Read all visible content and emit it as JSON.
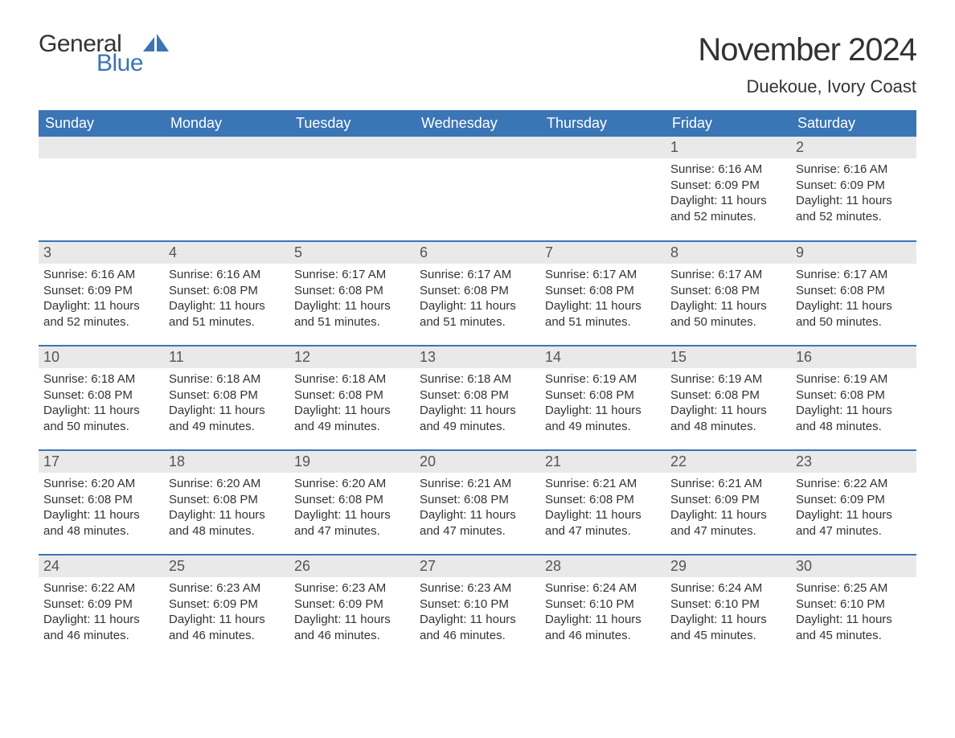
{
  "logo": {
    "text1": "General",
    "text2": "Blue",
    "icon_color": "#3a75b5"
  },
  "title": "November 2024",
  "location": "Duekoue, Ivory Coast",
  "colors": {
    "header_bg": "#3a75b5",
    "header_text": "#ffffff",
    "daybar_bg": "#e9e9e9",
    "daybar_text": "#555555",
    "body_text": "#333333",
    "row_divider": "#3a75b5",
    "background": "#ffffff"
  },
  "typography": {
    "title_fontsize": 40,
    "location_fontsize": 22,
    "header_fontsize": 18,
    "daynum_fontsize": 18,
    "cell_fontsize": 15
  },
  "layout": {
    "columns": 7,
    "rows": 5,
    "leading_blanks": 5
  },
  "weekday_headers": [
    "Sunday",
    "Monday",
    "Tuesday",
    "Wednesday",
    "Thursday",
    "Friday",
    "Saturday"
  ],
  "labels": {
    "sunrise": "Sunrise:",
    "sunset": "Sunset:",
    "daylight": "Daylight:"
  },
  "days": [
    {
      "n": 1,
      "sunrise": "6:16 AM",
      "sunset": "6:09 PM",
      "daylight": "11 hours and 52 minutes."
    },
    {
      "n": 2,
      "sunrise": "6:16 AM",
      "sunset": "6:09 PM",
      "daylight": "11 hours and 52 minutes."
    },
    {
      "n": 3,
      "sunrise": "6:16 AM",
      "sunset": "6:09 PM",
      "daylight": "11 hours and 52 minutes."
    },
    {
      "n": 4,
      "sunrise": "6:16 AM",
      "sunset": "6:08 PM",
      "daylight": "11 hours and 51 minutes."
    },
    {
      "n": 5,
      "sunrise": "6:17 AM",
      "sunset": "6:08 PM",
      "daylight": "11 hours and 51 minutes."
    },
    {
      "n": 6,
      "sunrise": "6:17 AM",
      "sunset": "6:08 PM",
      "daylight": "11 hours and 51 minutes."
    },
    {
      "n": 7,
      "sunrise": "6:17 AM",
      "sunset": "6:08 PM",
      "daylight": "11 hours and 51 minutes."
    },
    {
      "n": 8,
      "sunrise": "6:17 AM",
      "sunset": "6:08 PM",
      "daylight": "11 hours and 50 minutes."
    },
    {
      "n": 9,
      "sunrise": "6:17 AM",
      "sunset": "6:08 PM",
      "daylight": "11 hours and 50 minutes."
    },
    {
      "n": 10,
      "sunrise": "6:18 AM",
      "sunset": "6:08 PM",
      "daylight": "11 hours and 50 minutes."
    },
    {
      "n": 11,
      "sunrise": "6:18 AM",
      "sunset": "6:08 PM",
      "daylight": "11 hours and 49 minutes."
    },
    {
      "n": 12,
      "sunrise": "6:18 AM",
      "sunset": "6:08 PM",
      "daylight": "11 hours and 49 minutes."
    },
    {
      "n": 13,
      "sunrise": "6:18 AM",
      "sunset": "6:08 PM",
      "daylight": "11 hours and 49 minutes."
    },
    {
      "n": 14,
      "sunrise": "6:19 AM",
      "sunset": "6:08 PM",
      "daylight": "11 hours and 49 minutes."
    },
    {
      "n": 15,
      "sunrise": "6:19 AM",
      "sunset": "6:08 PM",
      "daylight": "11 hours and 48 minutes."
    },
    {
      "n": 16,
      "sunrise": "6:19 AM",
      "sunset": "6:08 PM",
      "daylight": "11 hours and 48 minutes."
    },
    {
      "n": 17,
      "sunrise": "6:20 AM",
      "sunset": "6:08 PM",
      "daylight": "11 hours and 48 minutes."
    },
    {
      "n": 18,
      "sunrise": "6:20 AM",
      "sunset": "6:08 PM",
      "daylight": "11 hours and 48 minutes."
    },
    {
      "n": 19,
      "sunrise": "6:20 AM",
      "sunset": "6:08 PM",
      "daylight": "11 hours and 47 minutes."
    },
    {
      "n": 20,
      "sunrise": "6:21 AM",
      "sunset": "6:08 PM",
      "daylight": "11 hours and 47 minutes."
    },
    {
      "n": 21,
      "sunrise": "6:21 AM",
      "sunset": "6:08 PM",
      "daylight": "11 hours and 47 minutes."
    },
    {
      "n": 22,
      "sunrise": "6:21 AM",
      "sunset": "6:09 PM",
      "daylight": "11 hours and 47 minutes."
    },
    {
      "n": 23,
      "sunrise": "6:22 AM",
      "sunset": "6:09 PM",
      "daylight": "11 hours and 47 minutes."
    },
    {
      "n": 24,
      "sunrise": "6:22 AM",
      "sunset": "6:09 PM",
      "daylight": "11 hours and 46 minutes."
    },
    {
      "n": 25,
      "sunrise": "6:23 AM",
      "sunset": "6:09 PM",
      "daylight": "11 hours and 46 minutes."
    },
    {
      "n": 26,
      "sunrise": "6:23 AM",
      "sunset": "6:09 PM",
      "daylight": "11 hours and 46 minutes."
    },
    {
      "n": 27,
      "sunrise": "6:23 AM",
      "sunset": "6:10 PM",
      "daylight": "11 hours and 46 minutes."
    },
    {
      "n": 28,
      "sunrise": "6:24 AM",
      "sunset": "6:10 PM",
      "daylight": "11 hours and 46 minutes."
    },
    {
      "n": 29,
      "sunrise": "6:24 AM",
      "sunset": "6:10 PM",
      "daylight": "11 hours and 45 minutes."
    },
    {
      "n": 30,
      "sunrise": "6:25 AM",
      "sunset": "6:10 PM",
      "daylight": "11 hours and 45 minutes."
    }
  ]
}
